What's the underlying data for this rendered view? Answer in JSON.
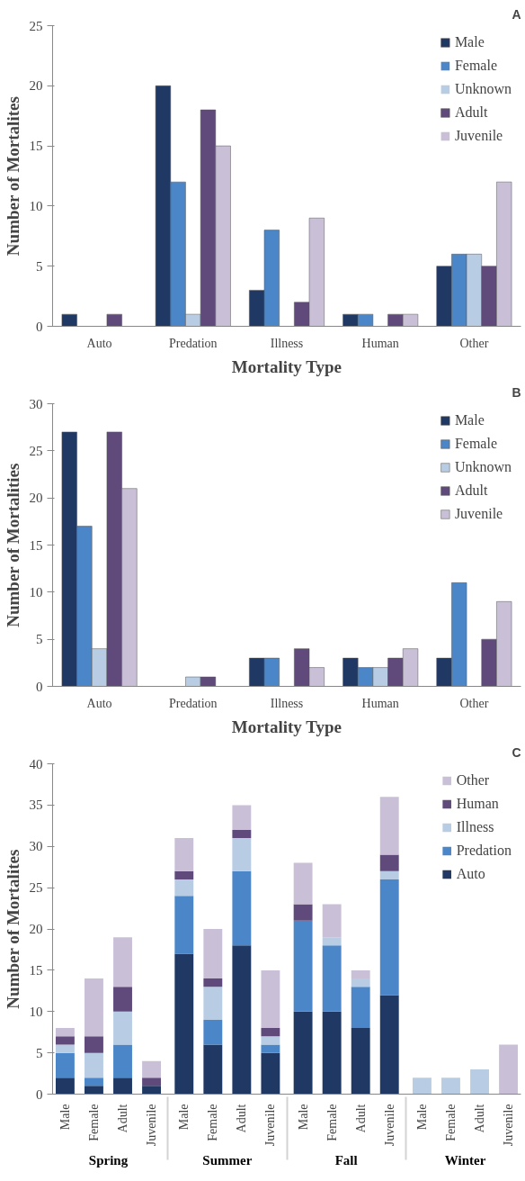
{
  "chart_data": [
    {
      "type": "bar",
      "title": "A",
      "xlabel": "Mortality Type",
      "ylabel": "Number of Mortalites",
      "categories": [
        "Auto",
        "Predation",
        "Illness",
        "Human",
        "Other"
      ],
      "series": [
        {
          "name": "Male",
          "color": "#1f3864",
          "values": [
            1,
            20,
            3,
            1,
            5
          ]
        },
        {
          "name": "Female",
          "color": "#4a86c8",
          "values": [
            0,
            12,
            8,
            1,
            6
          ]
        },
        {
          "name": "Unknown",
          "color": "#b8cce4",
          "values": [
            0,
            1,
            0,
            0,
            6
          ]
        },
        {
          "name": "Adult",
          "color": "#5f4a7b",
          "values": [
            1,
            18,
            2,
            1,
            5
          ]
        },
        {
          "name": "Juvenile",
          "color": "#c9c0d8",
          "values": [
            0,
            15,
            9,
            1,
            12
          ]
        }
      ],
      "ylim": [
        0,
        25
      ],
      "yticks": [
        0,
        5,
        10,
        15,
        20,
        25
      ],
      "grid": false,
      "legend": "top right"
    },
    {
      "type": "bar",
      "title": "B",
      "xlabel": "Mortality Type",
      "ylabel": "Number of Mortalities",
      "categories": [
        "Auto",
        "Predation",
        "Illness",
        "Human",
        "Other"
      ],
      "series": [
        {
          "name": "Male",
          "color": "#1f3864",
          "values": [
            27,
            0,
            3,
            3,
            3
          ]
        },
        {
          "name": "Female",
          "color": "#4a86c8",
          "values": [
            17,
            0,
            3,
            2,
            11
          ]
        },
        {
          "name": "Unknown",
          "color": "#b8cce4",
          "values": [
            4,
            1,
            0,
            2,
            0
          ]
        },
        {
          "name": "Adult",
          "color": "#5f4a7b",
          "values": [
            27,
            1,
            4,
            3,
            5
          ]
        },
        {
          "name": "Juvenile",
          "color": "#c9c0d8",
          "values": [
            21,
            0,
            2,
            4,
            9
          ]
        }
      ],
      "ylim": [
        0,
        30
      ],
      "yticks": [
        0,
        5,
        10,
        15,
        20,
        25,
        30
      ],
      "grid": false,
      "legend": "top right"
    },
    {
      "type": "bar",
      "title": "C",
      "ylabel": "Number of Mortalites",
      "stacked": true,
      "categories": [
        "Male",
        "Female",
        "Adult",
        "Juvenile",
        "Male",
        "Female",
        "Adult",
        "Juvenile",
        "Male",
        "Female",
        "Adult",
        "Juvenile",
        "Male",
        "Female",
        "Adult",
        "Juvenile"
      ],
      "annotations": [
        "Spring",
        "Summer",
        "Fall",
        "Winter"
      ],
      "series": [
        {
          "name": "Auto",
          "color": "#1f3864",
          "values": [
            2,
            1,
            2,
            1,
            17,
            6,
            18,
            5,
            10,
            10,
            8,
            12,
            0,
            0,
            0,
            0
          ]
        },
        {
          "name": "Predation",
          "color": "#4a86c8",
          "values": [
            3,
            1,
            4,
            0,
            7,
            3,
            9,
            1,
            11,
            8,
            5,
            14,
            0,
            0,
            0,
            0
          ]
        },
        {
          "name": "Illness",
          "color": "#b8cce4",
          "values": [
            1,
            3,
            4,
            0,
            2,
            4,
            4,
            1,
            0,
            1,
            1,
            1,
            2,
            2,
            3,
            0
          ]
        },
        {
          "name": "Human",
          "color": "#5f4a7b",
          "values": [
            1,
            2,
            3,
            1,
            1,
            1,
            1,
            1,
            2,
            0,
            0,
            2,
            0,
            0,
            0,
            0
          ]
        },
        {
          "name": "Other",
          "color": "#c9c0d8",
          "values": [
            1,
            7,
            6,
            2,
            4,
            6,
            3,
            7,
            5,
            4,
            1,
            7,
            0,
            0,
            0,
            6
          ]
        }
      ],
      "ylim": [
        0,
        40
      ],
      "yticks": [
        0,
        5,
        10,
        15,
        20,
        25,
        30,
        35,
        40
      ],
      "grid": false,
      "legend": "top right"
    }
  ]
}
